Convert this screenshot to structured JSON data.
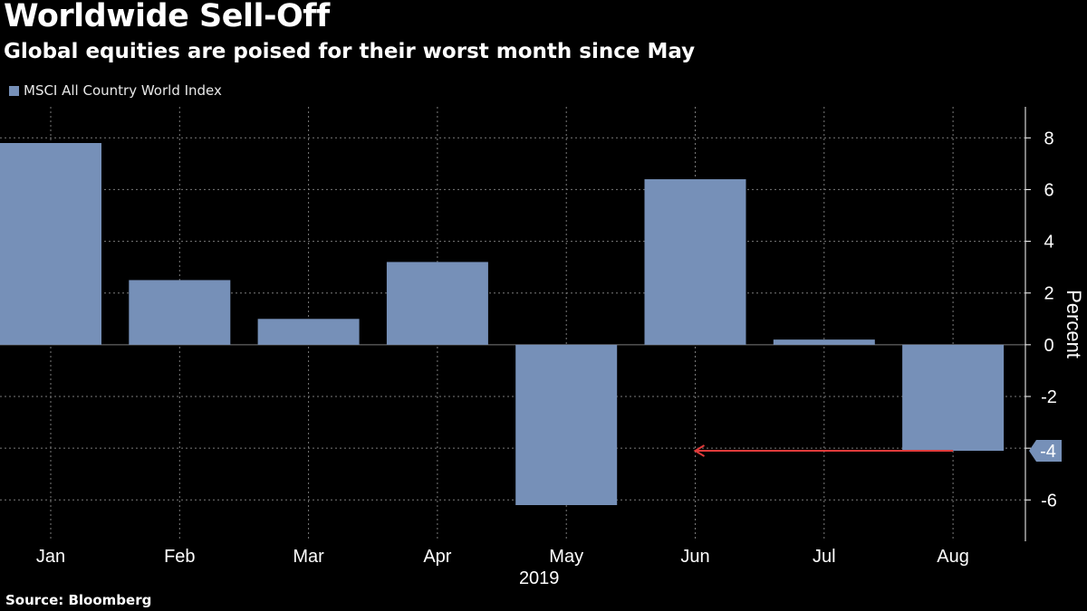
{
  "colors": {
    "bar": "#7690b8",
    "grid": "#7a7a7a",
    "axis": "#ffffff",
    "arrow": "#e03b3b",
    "background": "#000000"
  },
  "chart_data": {
    "type": "bar",
    "title": "Worldwide Sell-Off",
    "subtitle": "Global equities are poised for their worst month since May",
    "categories": [
      "Jan",
      "Feb",
      "Mar",
      "Apr",
      "May",
      "Jun",
      "Jul",
      "Aug"
    ],
    "x_group_label": "2019",
    "series": [
      {
        "name": "MSCI All Country World Index",
        "values": [
          7.8,
          2.5,
          1.0,
          3.2,
          -6.2,
          6.4,
          0.2,
          -4.1
        ]
      }
    ],
    "ylabel": "Percent",
    "ylim": [
      -7.6,
      9.2
    ],
    "yticks": [
      8,
      6,
      4,
      2,
      0,
      -2,
      -4,
      -6
    ],
    "y_axis_position": "right",
    "grid": true,
    "legend_position": "top-left",
    "last_value_label": "-4",
    "annotation": {
      "type": "arrow",
      "from_category": "Aug",
      "to_category": "Jun",
      "y": -4.1
    },
    "source": "Source: Bloomberg"
  }
}
